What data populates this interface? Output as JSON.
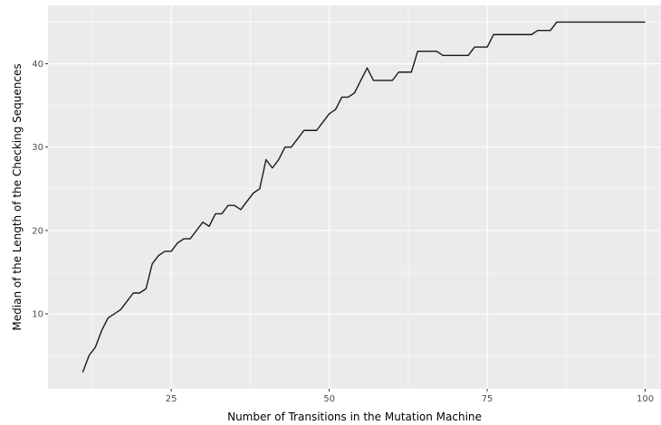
{
  "chart_data": {
    "type": "line",
    "title": "",
    "xlabel": "Number of Transitions in the Mutation Machine",
    "ylabel": "Median of the Length of the Checking Sequences",
    "xlim": [
      5.5,
      102.5
    ],
    "ylim": [
      1.0,
      47.0
    ],
    "x_ticks": [
      25,
      50,
      75,
      100
    ],
    "y_ticks": [
      10,
      20,
      30,
      40
    ],
    "x_tick_labels": [
      "25",
      "50",
      "75",
      "100"
    ],
    "y_tick_labels": [
      "10",
      "20",
      "30",
      "40"
    ],
    "grid": true,
    "legend": "none",
    "colors": {
      "panel": "#ebebeb",
      "grid": "#ffffff",
      "line": "#1a1a1a"
    },
    "series": [
      {
        "x": [
          11,
          12,
          13,
          14,
          15,
          16,
          17,
          18,
          19,
          20,
          21,
          22,
          23,
          24,
          25,
          26,
          27,
          28,
          29,
          30,
          31,
          32,
          33,
          34,
          35,
          36,
          37,
          38,
          39,
          40,
          41,
          42,
          43,
          44,
          45,
          46,
          47,
          48,
          49,
          50,
          51,
          52,
          53,
          54,
          55,
          56,
          57,
          58,
          59,
          60,
          61,
          62,
          63,
          64,
          65,
          66,
          67,
          68,
          69,
          70,
          71,
          72,
          73,
          74,
          75,
          76,
          77,
          78,
          79,
          80,
          81,
          82,
          83,
          84,
          85,
          86,
          87,
          88,
          89,
          90,
          91,
          92,
          93,
          94,
          95,
          96,
          97,
          98,
          99,
          100
        ],
        "values": [
          3,
          5,
          6,
          8,
          9.5,
          10,
          10.5,
          11.5,
          12.5,
          12.5,
          13,
          16,
          17,
          17.5,
          17.5,
          18.5,
          19,
          19,
          20,
          21,
          20.5,
          22,
          22,
          23,
          23,
          22.5,
          23.5,
          24.5,
          25,
          28.5,
          27.5,
          28.5,
          30,
          30,
          31,
          32,
          32,
          32,
          33,
          34,
          34.5,
          36,
          36,
          36.5,
          38,
          39.5,
          38,
          38,
          38,
          38,
          39,
          39,
          39,
          41.5,
          41.5,
          41.5,
          41.5,
          41,
          41,
          41,
          41,
          41,
          42,
          42,
          42,
          43.5,
          43.5,
          43.5,
          43.5,
          43.5,
          43.5,
          43.5,
          44,
          44,
          44,
          45,
          45,
          45,
          45,
          45,
          45,
          45,
          45,
          45,
          45,
          45,
          45,
          45,
          45,
          45
        ]
      }
    ]
  }
}
